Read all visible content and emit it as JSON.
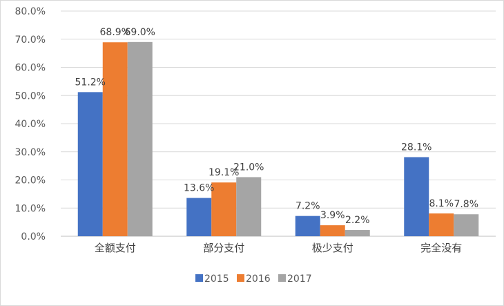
{
  "chart_data": {
    "type": "bar",
    "categories": [
      "全额支付",
      "部分支付",
      "极少支付",
      "完全没有"
    ],
    "series": [
      {
        "name": "2015",
        "color": "#4472c4",
        "values": [
          51.2,
          13.6,
          7.2,
          28.1
        ],
        "labels": [
          "51.2%",
          "13.6%",
          "7.2%",
          "28.1%"
        ]
      },
      {
        "name": "2016",
        "color": "#ed7d31",
        "values": [
          68.9,
          19.1,
          3.9,
          8.1
        ],
        "labels": [
          "68.9%",
          "19.1%",
          "3.9%",
          "8.1%"
        ]
      },
      {
        "name": "2017",
        "color": "#a5a5a5",
        "values": [
          69.0,
          21.0,
          2.2,
          7.8
        ],
        "labels": [
          "69.0%",
          "21.0%",
          "2.2%",
          "7.8%"
        ]
      }
    ],
    "yticks": [
      "0.0%",
      "10.0%",
      "20.0%",
      "30.0%",
      "40.0%",
      "50.0%",
      "60.0%",
      "70.0%",
      "80.0%"
    ],
    "ylim": [
      0,
      80
    ],
    "grid": true,
    "legend_position": "bottom"
  }
}
